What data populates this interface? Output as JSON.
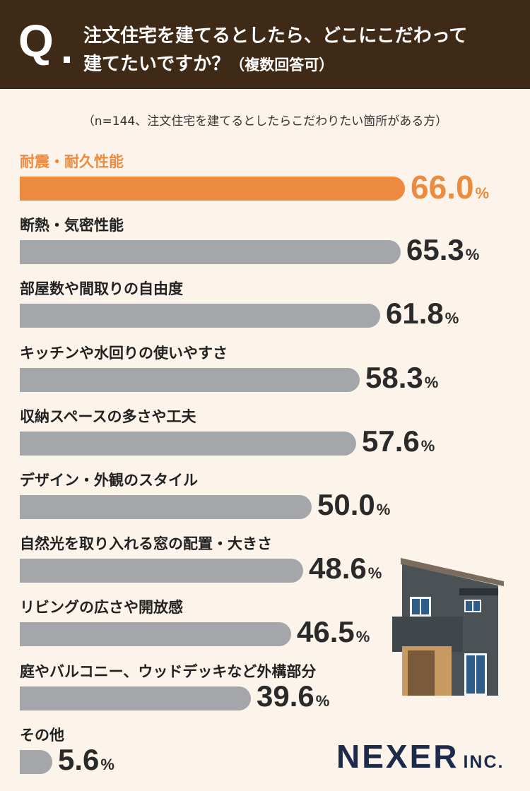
{
  "header": {
    "q_mark": "Q",
    "question_line1": "注文住宅を建てるとしたら、どこにこだわって",
    "question_line2": "建てたいですか？",
    "question_suffix": "（複数回答可）"
  },
  "note": "（n=144、注文住宅を建てるとしたらこだわりたい箇所がある方）",
  "logo": {
    "main": "NEXER",
    "sub": "INC."
  },
  "colors": {
    "highlight": "#ec8b3f",
    "bar": "#a5a6aa",
    "header_bg": "#3e2a16",
    "background": "#fcf4ea"
  },
  "chart_data": {
    "type": "bar",
    "orientation": "horizontal",
    "title": "注文住宅を建てるとしたら、どこにこだわって建てたいですか？（複数回答可）",
    "unit": "%",
    "xlim": [
      0,
      66.0
    ],
    "categories": [
      "耐震・耐久性能",
      "断熱・気密性能",
      "部屋数や間取りの自由度",
      "キッチンや水回りの使いやすさ",
      "収納スペースの多さや工夫",
      "デザイン・外観のスタイル",
      "自然光を取り入れる窓の配置・大きさ",
      "リビングの広さや開放感",
      "庭やバルコニー、ウッドデッキなど外構部分",
      "その他"
    ],
    "values": [
      66.0,
      65.3,
      61.8,
      58.3,
      57.6,
      50.0,
      48.6,
      46.5,
      39.6,
      5.6
    ],
    "labels": [
      "66.0",
      "65.3",
      "61.8",
      "58.3",
      "57.6",
      "50.0",
      "48.6",
      "46.5",
      "39.6",
      "5.6"
    ],
    "highlight_index": 0
  }
}
